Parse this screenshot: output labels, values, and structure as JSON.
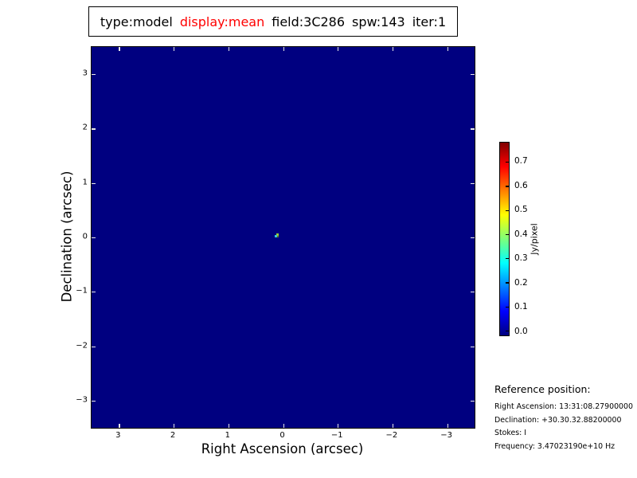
{
  "figure": {
    "background": "#ffffff",
    "title_segments": [
      {
        "text": "type:model",
        "color": "#000000"
      },
      {
        "text": "display:mean",
        "color": "#ff0000"
      },
      {
        "text": "field:3C286",
        "color": "#000000"
      },
      {
        "text": "spw:143",
        "color": "#000000"
      },
      {
        "text": "iter:1",
        "color": "#000000"
      }
    ]
  },
  "chart_data": {
    "type": "heatmap",
    "title": "type:model display:mean field:3C286 spw:143 iter:1",
    "xlabel": "Right Ascension (arcsec)",
    "ylabel": "Declination (arcsec)",
    "xlim": [
      3.5,
      -3.5
    ],
    "ylim": [
      -3.5,
      3.5
    ],
    "x_ticks": [
      3,
      2,
      1,
      0,
      -1,
      -2,
      -3
    ],
    "x_tick_labels": [
      "3",
      "2",
      "1",
      "0",
      "−1",
      "−2",
      "−3"
    ],
    "y_ticks": [
      3,
      2,
      1,
      0,
      -1,
      -2,
      -3
    ],
    "y_tick_labels": [
      "3",
      "2",
      "1",
      "0",
      "−1",
      "−2",
      "−3"
    ],
    "grid": false,
    "colormap": "jet",
    "image_background_color": "#000080",
    "image_background_value": 0.0,
    "tick_mark_color": "#e8e8e8",
    "points": [
      {
        "x": 0.15,
        "y": 0.07,
        "value": 0.78,
        "display_pixels": [
          {
            "dx": 2,
            "dy": 0,
            "w": 3,
            "h": 3,
            "color": "#9acd32"
          },
          {
            "dx": 0,
            "dy": 2,
            "w": 3,
            "h": 3,
            "color": "#35c8dc"
          },
          {
            "dx": 3,
            "dy": 3,
            "w": 2,
            "h": 2,
            "color": "#5f7a1e"
          }
        ]
      }
    ],
    "colorbar": {
      "label": "Jy/pixel",
      "ticks": [
        0.0,
        0.1,
        0.2,
        0.3,
        0.4,
        0.5,
        0.6,
        0.7
      ],
      "tick_labels": [
        "0.0",
        "0.1",
        "0.2",
        "0.3",
        "0.4",
        "0.5",
        "0.6",
        "0.7"
      ],
      "display_range": [
        -0.02,
        0.78
      ],
      "colormap_stops": [
        [
          0.0,
          "#000080"
        ],
        [
          0.125,
          "#0000ff"
        ],
        [
          0.375,
          "#00ffff"
        ],
        [
          0.5,
          "#7dff7a"
        ],
        [
          0.625,
          "#ffff00"
        ],
        [
          0.875,
          "#ff0000"
        ],
        [
          1.0,
          "#800000"
        ]
      ]
    }
  },
  "reference": {
    "heading": "Reference position:",
    "lines": [
      "Right Ascension: 13:31:08.27900000",
      "Declination: +30.30.32.88200000",
      "Stokes: I",
      "Frequency: 3.47023190e+10 Hz"
    ]
  }
}
